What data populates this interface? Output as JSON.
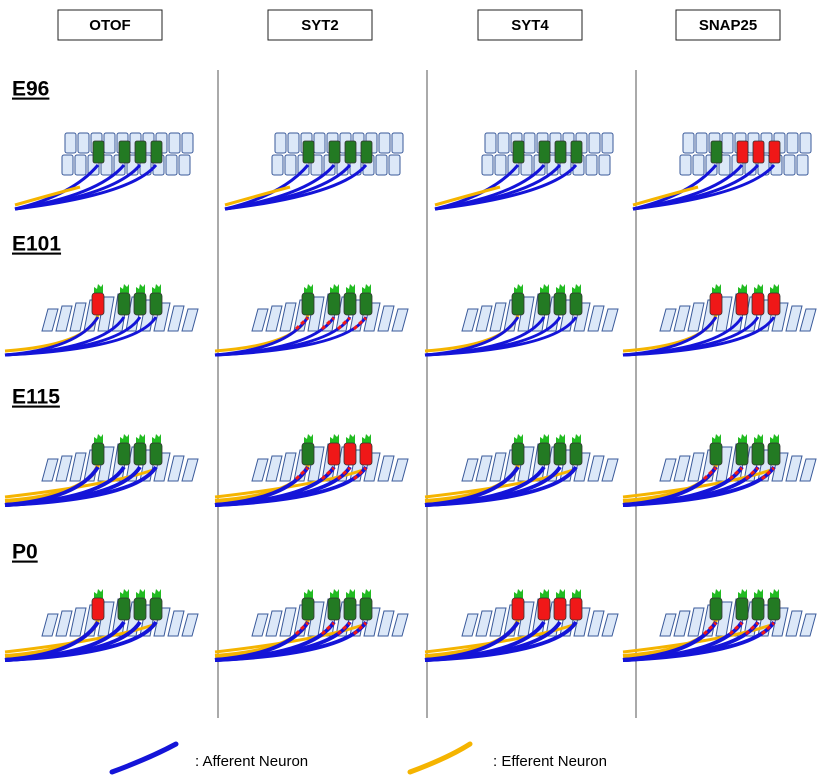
{
  "columns": [
    "OTOF",
    "SYT2",
    "SYT4",
    "SNAP25"
  ],
  "rows": [
    "E96",
    "E101",
    "E115",
    "P0"
  ],
  "legend": [
    ": Afferent Neuron",
    ": Efferent Neuron"
  ],
  "panels": [
    [
      {
        "ihc": "#237a23",
        "ohc": [
          "#237a23",
          "#237a23",
          "#237a23"
        ]
      },
      {
        "ihc": "#237a23",
        "ohc": [
          "#237a23",
          "#237a23",
          "#237a23"
        ]
      },
      {
        "ihc": "#237a23",
        "ohc": [
          "#237a23",
          "#237a23",
          "#237a23"
        ]
      },
      {
        "ihc": "#237a23",
        "ohc": [
          "#f01818",
          "#f01818",
          "#f01818"
        ]
      }
    ],
    [
      {
        "ihc": "#f01818",
        "ohc": [
          "#237a23",
          "#237a23",
          "#237a23"
        ]
      },
      {
        "ihc": "#237a23",
        "ohc": [
          "#237a23",
          "#237a23",
          "#237a23"
        ],
        "synapse": "#f01818"
      },
      {
        "ihc": "#237a23",
        "ohc": [
          "#237a23",
          "#237a23",
          "#237a23"
        ]
      },
      {
        "ihc": "#f01818",
        "ohc": [
          "#f01818",
          "#f01818",
          "#f01818"
        ]
      }
    ],
    [
      {
        "ihc": "#237a23",
        "ohc": [
          "#237a23",
          "#237a23",
          "#237a23"
        ]
      },
      {
        "ihc": "#237a23",
        "ohc": [
          "#f01818",
          "#f01818",
          "#f01818"
        ],
        "synapse": "#f01818"
      },
      {
        "ihc": "#237a23",
        "ohc": [
          "#237a23",
          "#237a23",
          "#237a23"
        ]
      },
      {
        "ihc": "#237a23",
        "ohc": [
          "#237a23",
          "#237a23",
          "#237a23"
        ],
        "synapse": "#f01818"
      }
    ],
    [
      {
        "ihc": "#f01818",
        "ohc": [
          "#237a23",
          "#237a23",
          "#237a23"
        ]
      },
      {
        "ihc": "#237a23",
        "ohc": [
          "#237a23",
          "#237a23",
          "#237a23"
        ],
        "synapse": "#f01818"
      },
      {
        "ihc": "#f01818",
        "ohc": [
          "#f01818",
          "#f01818",
          "#f01818"
        ]
      },
      {
        "ihc": "#237a23",
        "ohc": [
          "#237a23",
          "#237a23",
          "#237a23"
        ],
        "synapse": "#f01818"
      }
    ]
  ]
}
